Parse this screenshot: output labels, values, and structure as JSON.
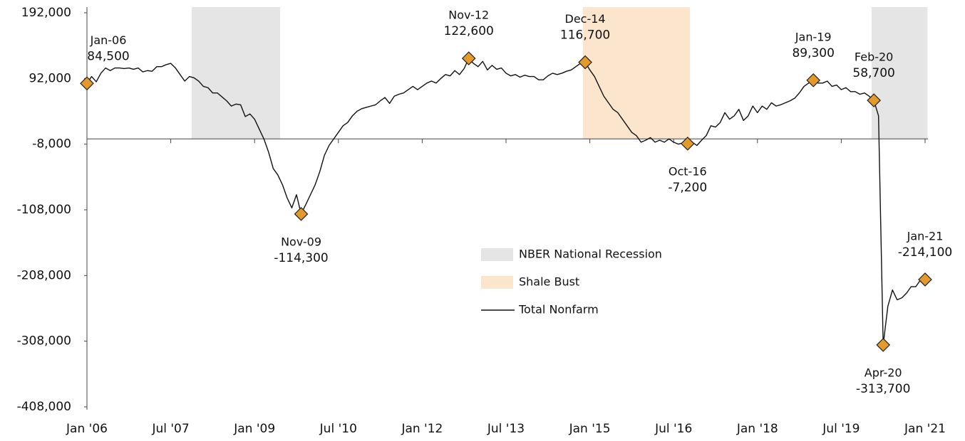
{
  "chart_data": {
    "type": "line",
    "categories": [
      "Jan-06",
      "Feb-06",
      "Mar-06",
      "Apr-06",
      "May-06",
      "Jun-06",
      "Jul-06",
      "Aug-06",
      "Sep-06",
      "Oct-06",
      "Nov-06",
      "Dec-06",
      "Jan-07",
      "Feb-07",
      "Mar-07",
      "Apr-07",
      "May-07",
      "Jun-07",
      "Jul-07",
      "Aug-07",
      "Sep-07",
      "Oct-07",
      "Nov-07",
      "Dec-07",
      "Jan-08",
      "Feb-08",
      "Mar-08",
      "Apr-08",
      "May-08",
      "Jun-08",
      "Jul-08",
      "Aug-08",
      "Sep-08",
      "Oct-08",
      "Nov-08",
      "Dec-08",
      "Jan-09",
      "Feb-09",
      "Mar-09",
      "Apr-09",
      "May-09",
      "Jun-09",
      "Jul-09",
      "Aug-09",
      "Sep-09",
      "Oct-09",
      "Nov-09",
      "Dec-09",
      "Jan-10",
      "Feb-10",
      "Mar-10",
      "Apr-10",
      "May-10",
      "Jun-10",
      "Jul-10",
      "Aug-10",
      "Sep-10",
      "Oct-10",
      "Nov-10",
      "Dec-10",
      "Jan-11",
      "Feb-11",
      "Mar-11",
      "Apr-11",
      "May-11",
      "Jun-11",
      "Jul-11",
      "Aug-11",
      "Sep-11",
      "Oct-11",
      "Nov-11",
      "Dec-11",
      "Jan-12",
      "Feb-12",
      "Mar-12",
      "Apr-12",
      "May-12",
      "Jun-12",
      "Jul-12",
      "Aug-12",
      "Sep-12",
      "Oct-12",
      "Nov-12",
      "Dec-12",
      "Jan-13",
      "Feb-13",
      "Mar-13",
      "Apr-13",
      "May-13",
      "Jun-13",
      "Jul-13",
      "Aug-13",
      "Sep-13",
      "Oct-13",
      "Nov-13",
      "Dec-13",
      "Jan-14",
      "Feb-14",
      "Mar-14",
      "Apr-14",
      "May-14",
      "Jun-14",
      "Jul-14",
      "Aug-14",
      "Sep-14",
      "Oct-14",
      "Nov-14",
      "Dec-14",
      "Jan-15",
      "Feb-15",
      "Mar-15",
      "Apr-15",
      "May-15",
      "Jun-15",
      "Jul-15",
      "Aug-15",
      "Sep-15",
      "Oct-15",
      "Nov-15",
      "Dec-15",
      "Jan-16",
      "Feb-16",
      "Mar-16",
      "Apr-16",
      "May-16",
      "Jun-16",
      "Jul-16",
      "Aug-16",
      "Sep-16",
      "Oct-16",
      "Nov-16",
      "Dec-16",
      "Jan-17",
      "Feb-17",
      "Mar-17",
      "Apr-17",
      "May-17",
      "Jun-17",
      "Jul-17",
      "Aug-17",
      "Sep-17",
      "Oct-17",
      "Nov-17",
      "Dec-17",
      "Jan-18",
      "Feb-18",
      "Mar-18",
      "Apr-18",
      "May-18",
      "Jun-18",
      "Jul-18",
      "Aug-18",
      "Sep-18",
      "Oct-18",
      "Nov-18",
      "Dec-18",
      "Jan-19",
      "Feb-19",
      "Mar-19",
      "Apr-19",
      "May-19",
      "Jun-19",
      "Jul-19",
      "Aug-19",
      "Sep-19",
      "Oct-19",
      "Nov-19",
      "Dec-19",
      "Jan-20",
      "Feb-20",
      "Mar-20",
      "Apr-20",
      "May-20",
      "Jun-20",
      "Jul-20",
      "Aug-20",
      "Sep-20",
      "Oct-20",
      "Nov-20",
      "Dec-20",
      "Jan-21"
    ],
    "series": [
      {
        "name": "Total Nonfarm",
        "color": "#111111",
        "marker_color": "#e39a2a",
        "values": [
          84500,
          95000,
          87000,
          100000,
          108000,
          104000,
          108000,
          108000,
          107000,
          108000,
          106000,
          108000,
          102000,
          104000,
          103000,
          110000,
          110000,
          113000,
          115000,
          108000,
          98000,
          88000,
          95000,
          93000,
          88000,
          80000,
          78000,
          70000,
          70000,
          64000,
          58000,
          50000,
          53000,
          52000,
          34000,
          38000,
          30000,
          15000,
          0,
          -20000,
          -45000,
          -55000,
          -70000,
          -90000,
          -105000,
          -85000,
          -114300,
          -100000,
          -85000,
          -70000,
          -50000,
          -25000,
          -10000,
          0,
          10000,
          20000,
          25000,
          35000,
          42000,
          46000,
          48000,
          50000,
          52000,
          58000,
          63000,
          54000,
          65000,
          68000,
          70000,
          75000,
          80000,
          75000,
          80000,
          85000,
          88000,
          85000,
          92000,
          98000,
          96000,
          104000,
          98000,
          107000,
          122600,
          115000,
          110000,
          118000,
          105000,
          112000,
          106000,
          108000,
          100000,
          96000,
          98000,
          94000,
          97000,
          95000,
          95000,
          90000,
          90000,
          96000,
          100000,
          98000,
          100000,
          103000,
          105000,
          110000,
          115000,
          116700,
          105000,
          95000,
          80000,
          65000,
          55000,
          45000,
          40000,
          30000,
          20000,
          10000,
          5000,
          -5000,
          -2000,
          2000,
          -5000,
          -2000,
          -5000,
          0,
          -5000,
          -8000,
          -6000,
          -7200,
          -5000,
          -10000,
          -2000,
          5000,
          20000,
          18000,
          25000,
          40000,
          30000,
          35000,
          45000,
          28000,
          35000,
          50000,
          40000,
          50000,
          45000,
          55000,
          50000,
          52000,
          55000,
          58000,
          62000,
          70000,
          80000,
          85000,
          89300,
          85000,
          85000,
          88000,
          80000,
          82000,
          75000,
          78000,
          72000,
          72000,
          68000,
          70000,
          65000,
          58700,
          35000,
          -313700,
          -255000,
          -230000,
          -245000,
          -242000,
          -235000,
          -225000,
          -225000,
          -215000,
          -214100
        ],
        "value_labels": [
          "84,500",
          null,
          null,
          null,
          null,
          null,
          null,
          null,
          null,
          null,
          null,
          null,
          null,
          null,
          null,
          null,
          null,
          null,
          null,
          null,
          null,
          null,
          null,
          null,
          null,
          null,
          null,
          null,
          null,
          null,
          null,
          null,
          null,
          null,
          null,
          null,
          null,
          null,
          null,
          null,
          null,
          null,
          null,
          null,
          null,
          null,
          "-114,300",
          null,
          null,
          null,
          null,
          null,
          null,
          null,
          null,
          null,
          null,
          null,
          null,
          null,
          null,
          null,
          null,
          null,
          null,
          null,
          null,
          null,
          null,
          null,
          null,
          null,
          null,
          null,
          null,
          null,
          null,
          null,
          null,
          null,
          null,
          null,
          "122,600",
          null,
          null,
          null,
          null,
          null,
          null,
          null,
          null,
          null,
          null,
          null,
          null,
          null,
          null,
          null,
          null,
          null,
          null,
          null,
          null,
          null,
          null,
          null,
          null,
          "116,700",
          null,
          null,
          null,
          null,
          null,
          null,
          null,
          null,
          null,
          null,
          null,
          null,
          null,
          null,
          null,
          null,
          null,
          null,
          null,
          null,
          null,
          "-7,200",
          null,
          null,
          null,
          null,
          null,
          null,
          null,
          null,
          null,
          null,
          null,
          null,
          null,
          null,
          null,
          null,
          null,
          null,
          null,
          null,
          null,
          null,
          null,
          null,
          null,
          null,
          "89,300",
          null,
          null,
          null,
          null,
          null,
          null,
          null,
          null,
          null,
          null,
          null,
          null,
          "58,700",
          null,
          "-313,700",
          null,
          null,
          null,
          null,
          null,
          null,
          null,
          null,
          "-214,100"
        ]
      }
    ],
    "shading": [
      {
        "name": "NBER National Recession",
        "color": "#e5e5e5",
        "ranges": [
          [
            "Dec-07",
            "Jun-09"
          ],
          [
            "Feb-20",
            "Jan-21"
          ]
        ]
      },
      {
        "name": "Shale Bust",
        "color": "#fbe6cd",
        "ranges": [
          [
            "Dec-14",
            "Oct-16"
          ]
        ]
      }
    ],
    "ylim": [
      -408000,
      192000
    ],
    "yticks": [
      {
        "value": 192000,
        "label": "192,000"
      },
      {
        "value": 92000,
        "label": "92,000"
      },
      {
        "value": -8000,
        "label": "-8,000"
      },
      {
        "value": -108000,
        "label": "-108,000"
      },
      {
        "value": -208000,
        "label": "-208,000"
      },
      {
        "value": -308000,
        "label": "-308,000"
      },
      {
        "value": -408000,
        "label": "-408,000"
      }
    ],
    "xticks": [
      {
        "value": "Jan-06",
        "label": "Jan '06"
      },
      {
        "value": "Jul-07",
        "label": "Jul '07"
      },
      {
        "value": "Jan-09",
        "label": "Jan '09"
      },
      {
        "value": "Jul-10",
        "label": "Jul '10"
      },
      {
        "value": "Jan-12",
        "label": "Jan '12"
      },
      {
        "value": "Jul-13",
        "label": "Jul '13"
      },
      {
        "value": "Jan-15",
        "label": "Jan '15"
      },
      {
        "value": "Jul-16",
        "label": "Jul '16"
      },
      {
        "value": "Jan-18",
        "label": "Jan '18"
      },
      {
        "value": "Jul-19",
        "label": "Jul '19"
      },
      {
        "value": "Jan-21",
        "label": "Jan '21"
      }
    ],
    "grid": false
  }
}
